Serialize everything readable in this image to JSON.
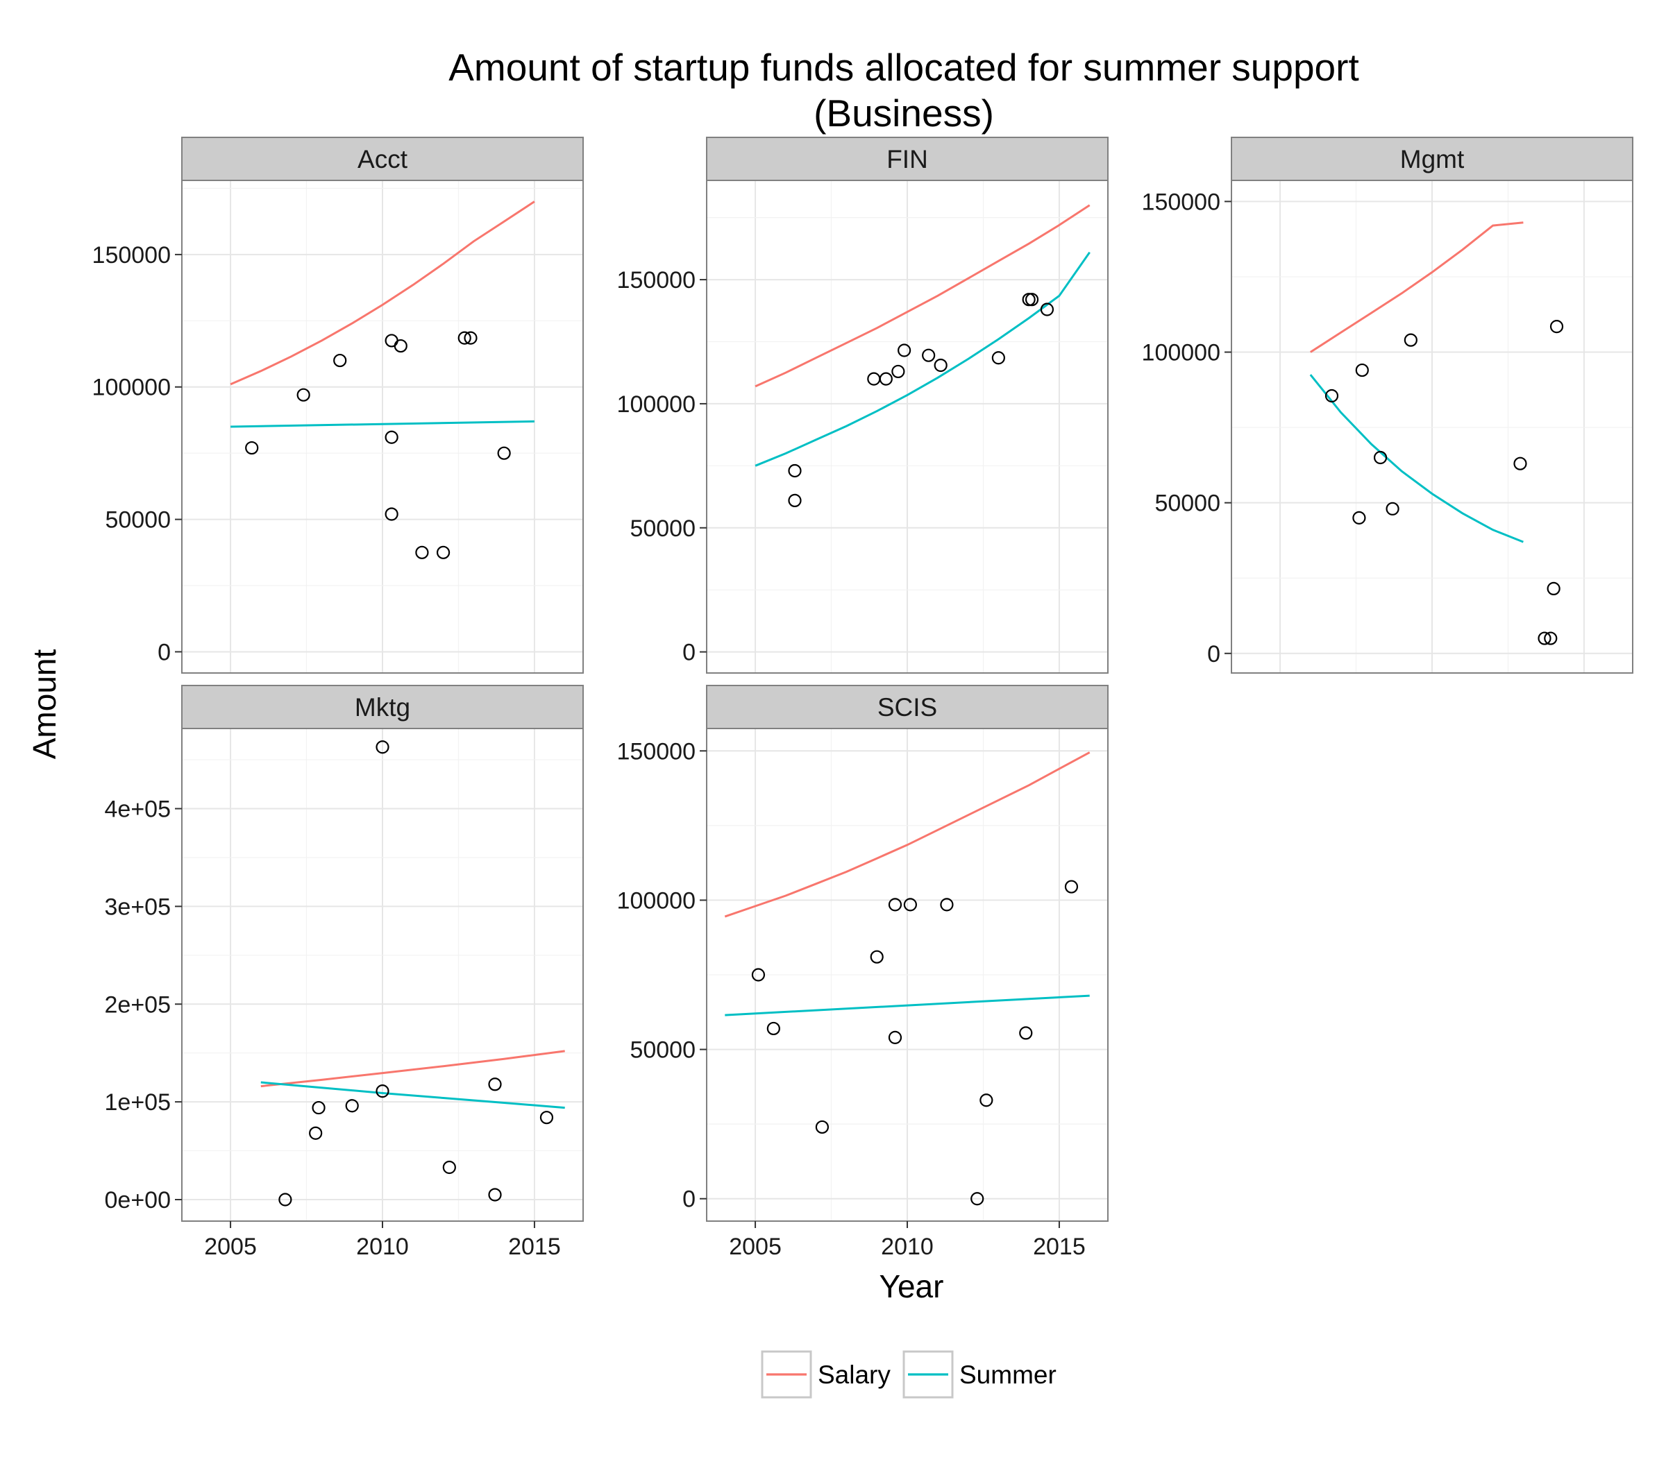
{
  "chart_data": {
    "type": "scatter",
    "title": "Amount of startup funds allocated for summer support",
    "subtitle": "(Business)",
    "xlabel": "Year",
    "ylabel": "Amount",
    "x_ticks": [
      2005,
      2010,
      2015
    ],
    "xlim": [
      2003.4,
      2016.6
    ],
    "grid": true,
    "legend": {
      "position": "bottom",
      "entries": [
        {
          "name": "Salary",
          "color": "#f8766d"
        },
        {
          "name": "Summer",
          "color": "#00bfc4"
        }
      ]
    },
    "point_color": "#000000",
    "panels": [
      {
        "name": "Acct",
        "ylim": [
          -8000,
          178000
        ],
        "y_ticks": [
          0,
          50000,
          100000,
          150000
        ],
        "y_tick_labels": [
          "0",
          "50000",
          "100000",
          "150000"
        ],
        "show_x_ticks": false,
        "points": [
          [
            2005.7,
            77000
          ],
          [
            2007.4,
            97000
          ],
          [
            2008.6,
            110000
          ],
          [
            2010.3,
            117500
          ],
          [
            2010.6,
            115500
          ],
          [
            2010.3,
            81000
          ],
          [
            2010.3,
            52000
          ],
          [
            2011.3,
            37500
          ],
          [
            2012.0,
            37500
          ],
          [
            2012.7,
            118500
          ],
          [
            2012.9,
            118500
          ],
          [
            2014.0,
            75000
          ]
        ],
        "salary_line": [
          [
            2005,
            101000
          ],
          [
            2006,
            106000
          ],
          [
            2007,
            111500
          ],
          [
            2008,
            117500
          ],
          [
            2009,
            124000
          ],
          [
            2010,
            131000
          ],
          [
            2011,
            138500
          ],
          [
            2012,
            146500
          ],
          [
            2013,
            155000
          ],
          [
            2014,
            162500
          ],
          [
            2015,
            170000
          ]
        ],
        "summer_line": [
          [
            2005,
            85000
          ],
          [
            2015,
            87000
          ]
        ]
      },
      {
        "name": "FIN",
        "ylim": [
          -8500,
          190000
        ],
        "y_ticks": [
          0,
          50000,
          100000,
          150000
        ],
        "y_tick_labels": [
          "0",
          "50000",
          "100000",
          "150000"
        ],
        "show_x_ticks": false,
        "points": [
          [
            2006.3,
            73000
          ],
          [
            2006.3,
            61000
          ],
          [
            2008.9,
            110000
          ],
          [
            2009.3,
            110000
          ],
          [
            2009.7,
            113000
          ],
          [
            2009.9,
            121500
          ],
          [
            2010.7,
            119500
          ],
          [
            2011.1,
            115500
          ],
          [
            2013.0,
            118500
          ],
          [
            2014.0,
            142000
          ],
          [
            2014.1,
            142000
          ],
          [
            2014.6,
            138000
          ]
        ],
        "salary_line": [
          [
            2005,
            107000
          ],
          [
            2006,
            112500
          ],
          [
            2007,
            118500
          ],
          [
            2008,
            124500
          ],
          [
            2009,
            130500
          ],
          [
            2010,
            137000
          ],
          [
            2011,
            143500
          ],
          [
            2012,
            150500
          ],
          [
            2013,
            157500
          ],
          [
            2014,
            164500
          ],
          [
            2015,
            172000
          ],
          [
            2016,
            180000
          ]
        ],
        "summer_line": [
          [
            2005,
            75000
          ],
          [
            2006,
            80000
          ],
          [
            2007,
            85500
          ],
          [
            2008,
            91000
          ],
          [
            2009,
            97000
          ],
          [
            2010,
            103500
          ],
          [
            2011,
            110500
          ],
          [
            2012,
            118000
          ],
          [
            2013,
            126000
          ],
          [
            2014,
            134500
          ],
          [
            2015,
            143500
          ],
          [
            2016,
            161000
          ]
        ]
      },
      {
        "name": "Mgmt",
        "ylim": [
          -6500,
          157000
        ],
        "y_ticks": [
          0,
          50000,
          100000,
          150000
        ],
        "y_tick_labels": [
          "0",
          "50000",
          "100000",
          "150000"
        ],
        "show_x_ticks": false,
        "points": [
          [
            2006.7,
            85500
          ],
          [
            2007.6,
            45000
          ],
          [
            2007.7,
            94000
          ],
          [
            2008.3,
            65000
          ],
          [
            2008.7,
            48000
          ],
          [
            2009.3,
            104000
          ],
          [
            2012.9,
            63000
          ],
          [
            2013.7,
            5000
          ],
          [
            2013.9,
            5000
          ],
          [
            2014.0,
            21500
          ],
          [
            2014.1,
            108500
          ]
        ],
        "salary_line": [
          [
            2006,
            100000
          ],
          [
            2007,
            106500
          ],
          [
            2008,
            113000
          ],
          [
            2009,
            119500
          ],
          [
            2010,
            126500
          ],
          [
            2011,
            134000
          ],
          [
            2012,
            142000
          ],
          [
            2013,
            143000
          ]
        ],
        "summer_line": [
          [
            2006,
            92500
          ],
          [
            2007,
            80000
          ],
          [
            2008,
            69500
          ],
          [
            2009,
            60500
          ],
          [
            2010,
            53000
          ],
          [
            2011,
            46500
          ],
          [
            2012,
            41000
          ],
          [
            2013,
            37000
          ]
        ]
      },
      {
        "name": "Mktg",
        "ylim": [
          -22000,
          482000
        ],
        "y_ticks": [
          0,
          100000,
          200000,
          300000,
          400000
        ],
        "y_tick_labels": [
          "0e+00",
          "1e+05",
          "2e+05",
          "3e+05",
          "4e+05"
        ],
        "show_x_ticks": true,
        "points": [
          [
            2006.8,
            0
          ],
          [
            2007.8,
            68000
          ],
          [
            2007.9,
            94000
          ],
          [
            2009.0,
            96000
          ],
          [
            2010.0,
            463000
          ],
          [
            2010.0,
            111000
          ],
          [
            2012.2,
            33000
          ],
          [
            2013.7,
            118000
          ],
          [
            2013.7,
            5000
          ],
          [
            2015.4,
            84000
          ]
        ],
        "salary_line": [
          [
            2006,
            116000
          ],
          [
            2008,
            122500
          ],
          [
            2010,
            129500
          ],
          [
            2012,
            136500
          ],
          [
            2014,
            144000
          ],
          [
            2016,
            152000
          ]
        ],
        "summer_line": [
          [
            2006,
            120000
          ],
          [
            2008,
            114500
          ],
          [
            2010,
            109000
          ],
          [
            2012,
            104000
          ],
          [
            2014,
            99000
          ],
          [
            2016,
            94000
          ]
        ]
      },
      {
        "name": "SCIS",
        "ylim": [
          -7500,
          157500
        ],
        "y_ticks": [
          0,
          50000,
          100000,
          150000
        ],
        "y_tick_labels": [
          "0",
          "50000",
          "100000",
          "150000"
        ],
        "show_x_ticks": true,
        "points": [
          [
            2005.1,
            75000
          ],
          [
            2005.6,
            57000
          ],
          [
            2007.2,
            24000
          ],
          [
            2009.0,
            81000
          ],
          [
            2009.6,
            98500
          ],
          [
            2010.1,
            98500
          ],
          [
            2009.6,
            54000
          ],
          [
            2011.3,
            98500
          ],
          [
            2012.3,
            0
          ],
          [
            2012.6,
            33000
          ],
          [
            2013.9,
            55500
          ],
          [
            2015.4,
            104500
          ]
        ],
        "salary_line": [
          [
            2004,
            94500
          ],
          [
            2005,
            98000
          ],
          [
            2006,
            101500
          ],
          [
            2007,
            105500
          ],
          [
            2008,
            109500
          ],
          [
            2009,
            114000
          ],
          [
            2010,
            118500
          ],
          [
            2011,
            123500
          ],
          [
            2012,
            128500
          ],
          [
            2013,
            133500
          ],
          [
            2014,
            138500
          ],
          [
            2015,
            144000
          ],
          [
            2016,
            149500
          ]
        ],
        "summer_line": [
          [
            2004,
            61500
          ],
          [
            2016,
            68000
          ]
        ]
      }
    ]
  }
}
